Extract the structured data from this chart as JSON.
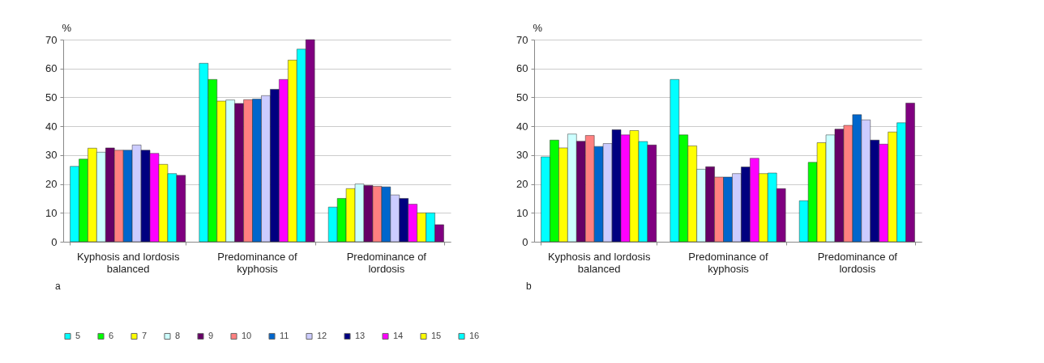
{
  "chart_data": [
    {
      "type": "bar",
      "ylabel": "%",
      "annotations": [
        "a"
      ],
      "categories": [
        "Kyphosis and lordosis balanced",
        "Predominance of kyphosis",
        "Predominance of lordosis"
      ],
      "ylim": [
        0,
        70
      ],
      "yticks": [
        0,
        10,
        20,
        30,
        40,
        50,
        60,
        70
      ],
      "grid": "y",
      "legend": "bottom",
      "series": [
        {
          "name": "5",
          "color": "#00ffff",
          "values": [
            26.1,
            61.8,
            12
          ]
        },
        {
          "name": "6",
          "color": "#00ff00",
          "values": [
            28.6,
            56.2,
            15
          ]
        },
        {
          "name": "7",
          "color": "#ffff00",
          "values": [
            32.4,
            48.7,
            18.4
          ]
        },
        {
          "name": "8",
          "color": "#ccffff",
          "values": [
            31,
            49.1,
            20
          ]
        },
        {
          "name": "9",
          "color": "#660066",
          "values": [
            32.5,
            47.9,
            19.5
          ]
        },
        {
          "name": "10",
          "color": "#ff8080",
          "values": [
            31.7,
            49.2,
            19.2
          ]
        },
        {
          "name": "11",
          "color": "#0066cc",
          "values": [
            31.7,
            49.4,
            19
          ]
        },
        {
          "name": "12",
          "color": "#ccccff",
          "values": [
            33.5,
            50.6,
            16.2
          ]
        },
        {
          "name": "13",
          "color": "#000080",
          "values": [
            31.7,
            52.8,
            15
          ]
        },
        {
          "name": "14",
          "color": "#ff00ff",
          "values": [
            30.6,
            56.2,
            13
          ]
        },
        {
          "name": "15",
          "color": "#ffff00",
          "values": [
            26.8,
            62.9,
            10
          ]
        },
        {
          "name": "16",
          "color": "#00ffff",
          "values": [
            23.6,
            66.7,
            10
          ]
        },
        {
          "color": "#800080",
          "values": [
            23,
            70,
            5.9
          ]
        }
      ]
    },
    {
      "type": "bar",
      "ylabel": "%",
      "annotations": [
        "b"
      ],
      "categories": [
        "Kyphosis and lordosis balanced",
        "Predominance of kyphosis",
        "Predominance of lordosis"
      ],
      "ylim": [
        0,
        70
      ],
      "yticks": [
        0,
        10,
        20,
        30,
        40,
        50,
        60,
        70
      ],
      "grid": "y",
      "legend": "bottom",
      "series": [
        {
          "name": "5",
          "color": "#00ffff",
          "values": [
            29.4,
            56.2,
            14.2
          ]
        },
        {
          "name": "6",
          "color": "#00ff00",
          "values": [
            35.2,
            37,
            27.5
          ]
        },
        {
          "name": "7",
          "color": "#ffff00",
          "values": [
            32.5,
            33.2,
            34.3
          ]
        },
        {
          "name": "8",
          "color": "#ccffff",
          "values": [
            37.3,
            25.1,
            37
          ]
        },
        {
          "name": "9",
          "color": "#660066",
          "values": [
            34.8,
            26,
            39
          ]
        },
        {
          "name": "10",
          "color": "#ff8080",
          "values": [
            36.8,
            22.4,
            40.3
          ]
        },
        {
          "name": "11",
          "color": "#0066cc",
          "values": [
            33,
            22.4,
            44
          ]
        },
        {
          "name": "12",
          "color": "#ccccff",
          "values": [
            34,
            23.6,
            42.2
          ]
        },
        {
          "name": "13",
          "color": "#000080",
          "values": [
            38.8,
            25.9,
            35.2
          ]
        },
        {
          "name": "14",
          "color": "#ff00ff",
          "values": [
            37,
            28.9,
            33.8
          ]
        },
        {
          "name": "15",
          "color": "#ffff00",
          "values": [
            38.5,
            23.6,
            38
          ]
        },
        {
          "name": "16",
          "color": "#00ffff",
          "values": [
            34.7,
            23.8,
            41.2
          ]
        },
        {
          "color": "#800080",
          "values": [
            33.5,
            18.4,
            48
          ]
        }
      ]
    }
  ]
}
